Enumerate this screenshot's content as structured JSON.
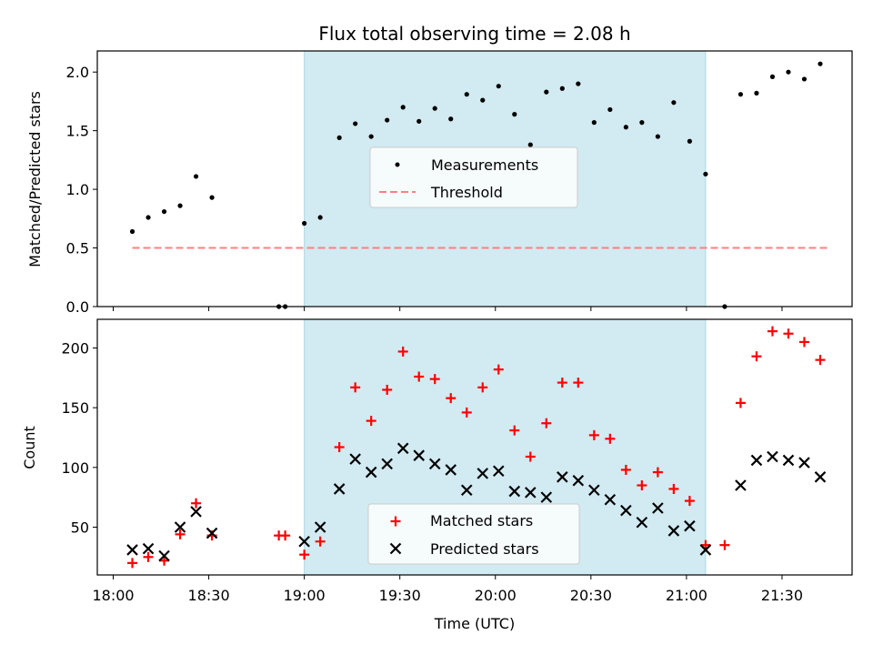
{
  "chart_data": {
    "type": "scatter",
    "title": "Flux total observing time = 2.08 h",
    "xlabel": "Time (UTC)",
    "x_ticks": [
      "18:00",
      "18:30",
      "19:00",
      "19:30",
      "20:00",
      "20:30",
      "21:00",
      "21:30"
    ],
    "x_range": [
      "17:55",
      "21:52"
    ],
    "shaded_interval": [
      "19:00",
      "21:06"
    ],
    "shade_color": "#add8e6",
    "top_panel": {
      "ylabel": "Matched/Predicted stars",
      "ylim": [
        0,
        2.18
      ],
      "yticks": [
        "0.0",
        "0.5",
        "1.0",
        "1.5",
        "2.0"
      ],
      "legend_position": "center",
      "threshold": {
        "name": "Threshold",
        "value": 0.5,
        "x_start": "18:06",
        "x_end": "21:45",
        "color": "#ff7f7f"
      },
      "measurements": {
        "name": "Measurements",
        "color": "#000000",
        "points": [
          [
            "18:06",
            0.64
          ],
          [
            "18:11",
            0.76
          ],
          [
            "18:16",
            0.81
          ],
          [
            "18:21",
            0.86
          ],
          [
            "18:26",
            1.11
          ],
          [
            "18:31",
            0.93
          ],
          [
            "18:52",
            0.0
          ],
          [
            "18:54",
            0.0
          ],
          [
            "19:00",
            0.71
          ],
          [
            "19:05",
            0.76
          ],
          [
            "19:11",
            1.44
          ],
          [
            "19:16",
            1.56
          ],
          [
            "19:21",
            1.45
          ],
          [
            "19:26",
            1.59
          ],
          [
            "19:31",
            1.7
          ],
          [
            "19:36",
            1.58
          ],
          [
            "19:41",
            1.69
          ],
          [
            "19:46",
            1.6
          ],
          [
            "19:51",
            1.81
          ],
          [
            "19:56",
            1.76
          ],
          [
            "20:01",
            1.88
          ],
          [
            "20:06",
            1.64
          ],
          [
            "20:11",
            1.38
          ],
          [
            "20:16",
            1.83
          ],
          [
            "20:21",
            1.86
          ],
          [
            "20:26",
            1.9
          ],
          [
            "20:31",
            1.57
          ],
          [
            "20:36",
            1.68
          ],
          [
            "20:41",
            1.53
          ],
          [
            "20:46",
            1.57
          ],
          [
            "20:51",
            1.45
          ],
          [
            "20:56",
            1.74
          ],
          [
            "21:01",
            1.41
          ],
          [
            "21:06",
            1.13
          ],
          [
            "21:12",
            0.0
          ],
          [
            "21:17",
            1.81
          ],
          [
            "21:22",
            1.82
          ],
          [
            "21:27",
            1.96
          ],
          [
            "21:32",
            2.0
          ],
          [
            "21:37",
            1.94
          ],
          [
            "21:42",
            2.07
          ]
        ]
      }
    },
    "bottom_panel": {
      "ylabel": "Count",
      "ylim": [
        10,
        224
      ],
      "yticks": [
        "50",
        "100",
        "150",
        "200"
      ],
      "legend_position": "lower center",
      "series": [
        {
          "name": "Matched stars",
          "marker": "plus",
          "color": "#ff0000",
          "points": [
            [
              "18:06",
              20
            ],
            [
              "18:11",
              25
            ],
            [
              "18:16",
              22
            ],
            [
              "18:21",
              44
            ],
            [
              "18:26",
              70
            ],
            [
              "18:31",
              43
            ],
            [
              "18:52",
              43
            ],
            [
              "18:54",
              43
            ],
            [
              "19:00",
              27
            ],
            [
              "19:05",
              38
            ],
            [
              "19:11",
              117
            ],
            [
              "19:16",
              167
            ],
            [
              "19:21",
              139
            ],
            [
              "19:26",
              165
            ],
            [
              "19:31",
              197
            ],
            [
              "19:36",
              176
            ],
            [
              "19:41",
              174
            ],
            [
              "19:46",
              158
            ],
            [
              "19:51",
              146
            ],
            [
              "19:56",
              167
            ],
            [
              "20:01",
              182
            ],
            [
              "20:06",
              131
            ],
            [
              "20:11",
              109
            ],
            [
              "20:16",
              137
            ],
            [
              "20:21",
              171
            ],
            [
              "20:26",
              171
            ],
            [
              "20:31",
              127
            ],
            [
              "20:36",
              124
            ],
            [
              "20:41",
              98
            ],
            [
              "20:46",
              85
            ],
            [
              "20:51",
              96
            ],
            [
              "20:56",
              82
            ],
            [
              "21:01",
              72
            ],
            [
              "21:06",
              35
            ],
            [
              "21:12",
              35
            ],
            [
              "21:17",
              154
            ],
            [
              "21:22",
              193
            ],
            [
              "21:27",
              214
            ],
            [
              "21:32",
              212
            ],
            [
              "21:37",
              205
            ],
            [
              "21:42",
              190
            ]
          ]
        },
        {
          "name": "Predicted stars",
          "marker": "x",
          "color": "#000000",
          "points": [
            [
              "18:06",
              31
            ],
            [
              "18:11",
              32
            ],
            [
              "18:16",
              26
            ],
            [
              "18:21",
              50
            ],
            [
              "18:26",
              63
            ],
            [
              "18:31",
              45
            ],
            [
              "19:00",
              38
            ],
            [
              "19:05",
              50
            ],
            [
              "19:11",
              82
            ],
            [
              "19:16",
              107
            ],
            [
              "19:21",
              96
            ],
            [
              "19:26",
              103
            ],
            [
              "19:31",
              116
            ],
            [
              "19:36",
              110
            ],
            [
              "19:41",
              103
            ],
            [
              "19:46",
              98
            ],
            [
              "19:51",
              81
            ],
            [
              "19:56",
              95
            ],
            [
              "20:01",
              97
            ],
            [
              "20:06",
              80
            ],
            [
              "20:11",
              79
            ],
            [
              "20:16",
              75
            ],
            [
              "20:21",
              92
            ],
            [
              "20:26",
              89
            ],
            [
              "20:31",
              81
            ],
            [
              "20:36",
              73
            ],
            [
              "20:41",
              64
            ],
            [
              "20:46",
              54
            ],
            [
              "20:51",
              66
            ],
            [
              "20:56",
              47
            ],
            [
              "21:01",
              51
            ],
            [
              "21:06",
              31
            ],
            [
              "21:17",
              85
            ],
            [
              "21:22",
              106
            ],
            [
              "21:27",
              109
            ],
            [
              "21:32",
              106
            ],
            [
              "21:37",
              104
            ],
            [
              "21:42",
              92
            ]
          ]
        }
      ]
    }
  }
}
